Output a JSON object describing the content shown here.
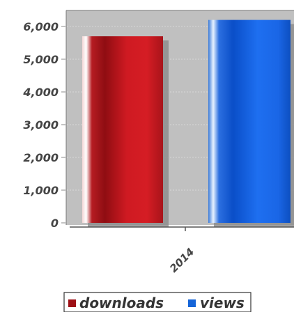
{
  "chart_data": {
    "type": "bar",
    "categories": [
      "2014"
    ],
    "series": [
      {
        "name": "downloads",
        "values": [
          5700
        ],
        "color": "#c8151b"
      },
      {
        "name": "views",
        "values": [
          6200
        ],
        "color": "#1565d8"
      }
    ],
    "ylim": [
      0,
      6500
    ],
    "yticks": [
      "0",
      "1,000",
      "2,000",
      "3,000",
      "4,000",
      "5,000",
      "6,000"
    ],
    "grid": true,
    "plot_background": "#c0c0c0",
    "legend_position": "bottom-center"
  }
}
